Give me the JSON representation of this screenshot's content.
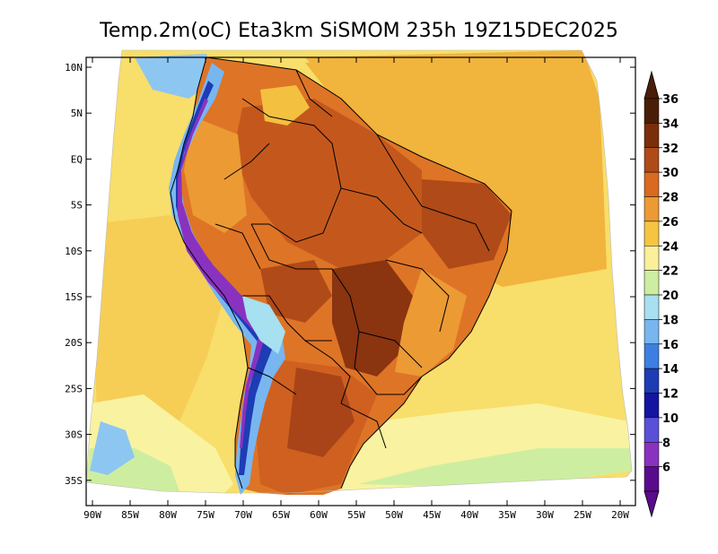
{
  "title": "Temp.2m(oC) Eta3km SiSMOM 235h 19Z15DEC2025",
  "map": {
    "lat_labels": [
      "10N",
      "5N",
      "EQ",
      "5S",
      "10S",
      "15S",
      "20S",
      "25S",
      "30S",
      "35S"
    ],
    "lon_labels": [
      "90W",
      "85W",
      "80W",
      "75W",
      "70W",
      "65W",
      "60W",
      "55W",
      "50W",
      "45W",
      "40W",
      "35W",
      "30W",
      "25W",
      "20W"
    ]
  },
  "colorbar": {
    "labels": [
      "36",
      "34",
      "32",
      "30",
      "28",
      "26",
      "24",
      "22",
      "20",
      "18",
      "16",
      "14",
      "12",
      "10",
      "8",
      "6"
    ],
    "colors": [
      "#4a1e06",
      "#7a2e0a",
      "#b04a18",
      "#d96a20",
      "#ec9a34",
      "#f5c542",
      "#faf09a",
      "#cdeea0",
      "#a7e0f0",
      "#78b6f0",
      "#3c7fe0",
      "#1e3cb4",
      "#1414a0",
      "#5a50d8",
      "#8a32c0",
      "#5a0a8c"
    ]
  }
}
